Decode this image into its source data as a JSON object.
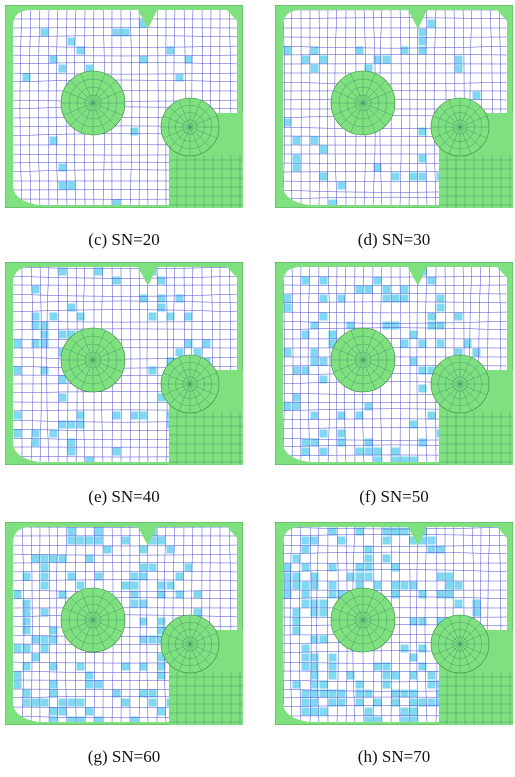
{
  "panels": [
    {
      "caption": "(c) SN=20"
    },
    {
      "caption": "(d) SN=30"
    },
    {
      "caption": "(e) SN=40"
    },
    {
      "caption": "(f) SN=50"
    },
    {
      "caption": "(g) SN=60"
    },
    {
      "caption": "(h) SN=70"
    }
  ]
}
